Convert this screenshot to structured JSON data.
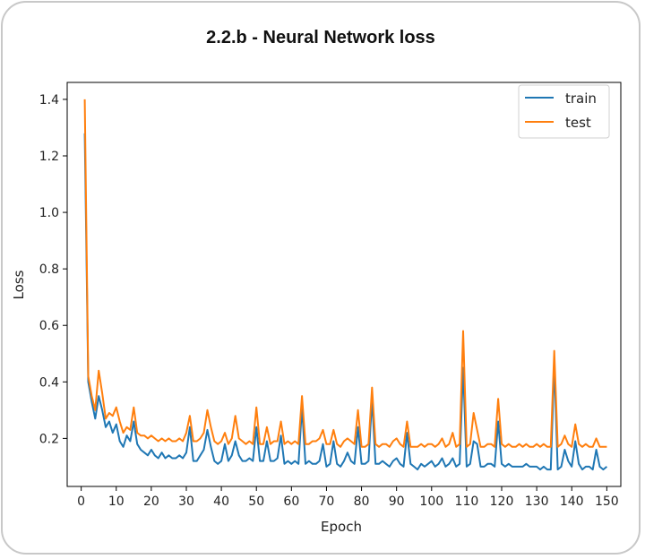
{
  "card": {
    "title": "2.2.b - Neural Network loss"
  },
  "chart_data": {
    "type": "line",
    "title": "",
    "xlabel": "Epoch",
    "ylabel": "Loss",
    "xlim": [
      -4,
      154
    ],
    "ylim": [
      0.03,
      1.46
    ],
    "xticks": [
      0,
      10,
      20,
      30,
      40,
      50,
      60,
      70,
      80,
      90,
      100,
      110,
      120,
      130,
      140,
      150
    ],
    "yticks": [
      0.2,
      0.4,
      0.6,
      0.8,
      1.0,
      1.2,
      1.4
    ],
    "ytick_labels": [
      "0.2",
      "0.4",
      "0.6",
      "0.8",
      "1.0",
      "1.2",
      "1.4"
    ],
    "grid": false,
    "legend_position": "top-right",
    "x": [
      1,
      2,
      3,
      4,
      5,
      6,
      7,
      8,
      9,
      10,
      11,
      12,
      13,
      14,
      15,
      16,
      17,
      18,
      19,
      20,
      21,
      22,
      23,
      24,
      25,
      26,
      27,
      28,
      29,
      30,
      31,
      32,
      33,
      34,
      35,
      36,
      37,
      38,
      39,
      40,
      41,
      42,
      43,
      44,
      45,
      46,
      47,
      48,
      49,
      50,
      51,
      52,
      53,
      54,
      55,
      56,
      57,
      58,
      59,
      60,
      61,
      62,
      63,
      64,
      65,
      66,
      67,
      68,
      69,
      70,
      71,
      72,
      73,
      74,
      75,
      76,
      77,
      78,
      79,
      80,
      81,
      82,
      83,
      84,
      85,
      86,
      87,
      88,
      89,
      90,
      91,
      92,
      93,
      94,
      95,
      96,
      97,
      98,
      99,
      100,
      101,
      102,
      103,
      104,
      105,
      106,
      107,
      108,
      109,
      110,
      111,
      112,
      113,
      114,
      115,
      116,
      117,
      118,
      119,
      120,
      121,
      122,
      123,
      124,
      125,
      126,
      127,
      128,
      129,
      130,
      131,
      132,
      133,
      134,
      135,
      136,
      137,
      138,
      139,
      140,
      141,
      142,
      143,
      144,
      145,
      146,
      147,
      148,
      149,
      150
    ],
    "series": [
      {
        "name": "train",
        "color": "#1f77b4",
        "values": [
          1.28,
          0.4,
          0.33,
          0.27,
          0.35,
          0.3,
          0.24,
          0.26,
          0.22,
          0.25,
          0.19,
          0.17,
          0.21,
          0.19,
          0.26,
          0.18,
          0.16,
          0.15,
          0.14,
          0.16,
          0.14,
          0.13,
          0.15,
          0.13,
          0.14,
          0.13,
          0.13,
          0.14,
          0.13,
          0.15,
          0.24,
          0.12,
          0.12,
          0.14,
          0.16,
          0.23,
          0.17,
          0.12,
          0.11,
          0.12,
          0.18,
          0.12,
          0.14,
          0.19,
          0.14,
          0.12,
          0.12,
          0.13,
          0.12,
          0.24,
          0.12,
          0.12,
          0.19,
          0.12,
          0.12,
          0.13,
          0.21,
          0.11,
          0.12,
          0.11,
          0.12,
          0.11,
          0.31,
          0.11,
          0.12,
          0.11,
          0.11,
          0.12,
          0.18,
          0.1,
          0.11,
          0.19,
          0.11,
          0.1,
          0.12,
          0.15,
          0.12,
          0.11,
          0.24,
          0.11,
          0.11,
          0.12,
          0.34,
          0.11,
          0.11,
          0.12,
          0.11,
          0.1,
          0.12,
          0.13,
          0.11,
          0.1,
          0.22,
          0.11,
          0.1,
          0.09,
          0.11,
          0.1,
          0.11,
          0.12,
          0.1,
          0.11,
          0.13,
          0.1,
          0.11,
          0.13,
          0.1,
          0.11,
          0.45,
          0.1,
          0.11,
          0.19,
          0.18,
          0.1,
          0.1,
          0.11,
          0.11,
          0.1,
          0.26,
          0.11,
          0.1,
          0.11,
          0.1,
          0.1,
          0.1,
          0.1,
          0.11,
          0.1,
          0.1,
          0.1,
          0.09,
          0.1,
          0.09,
          0.09,
          0.46,
          0.09,
          0.1,
          0.16,
          0.12,
          0.1,
          0.19,
          0.11,
          0.09,
          0.1,
          0.1,
          0.09,
          0.16,
          0.1,
          0.09,
          0.1
        ]
      },
      {
        "name": "test",
        "color": "#ff7f0e",
        "values": [
          1.4,
          0.42,
          0.35,
          0.3,
          0.44,
          0.36,
          0.27,
          0.29,
          0.28,
          0.31,
          0.26,
          0.22,
          0.24,
          0.23,
          0.31,
          0.22,
          0.21,
          0.21,
          0.2,
          0.21,
          0.2,
          0.19,
          0.2,
          0.19,
          0.2,
          0.19,
          0.19,
          0.2,
          0.19,
          0.22,
          0.28,
          0.19,
          0.19,
          0.2,
          0.22,
          0.3,
          0.24,
          0.19,
          0.18,
          0.19,
          0.22,
          0.18,
          0.2,
          0.28,
          0.2,
          0.19,
          0.18,
          0.19,
          0.18,
          0.31,
          0.18,
          0.18,
          0.24,
          0.18,
          0.19,
          0.19,
          0.26,
          0.18,
          0.19,
          0.18,
          0.19,
          0.18,
          0.35,
          0.18,
          0.18,
          0.19,
          0.19,
          0.2,
          0.23,
          0.18,
          0.18,
          0.23,
          0.18,
          0.17,
          0.19,
          0.2,
          0.19,
          0.18,
          0.3,
          0.17,
          0.17,
          0.18,
          0.38,
          0.18,
          0.17,
          0.18,
          0.18,
          0.17,
          0.19,
          0.2,
          0.18,
          0.17,
          0.26,
          0.17,
          0.17,
          0.17,
          0.18,
          0.17,
          0.18,
          0.18,
          0.17,
          0.18,
          0.2,
          0.17,
          0.18,
          0.22,
          0.17,
          0.18,
          0.58,
          0.17,
          0.18,
          0.29,
          0.23,
          0.17,
          0.17,
          0.18,
          0.18,
          0.17,
          0.34,
          0.18,
          0.17,
          0.18,
          0.17,
          0.17,
          0.18,
          0.17,
          0.18,
          0.17,
          0.17,
          0.18,
          0.17,
          0.18,
          0.17,
          0.17,
          0.51,
          0.17,
          0.18,
          0.21,
          0.18,
          0.17,
          0.25,
          0.18,
          0.17,
          0.18,
          0.17,
          0.17,
          0.2,
          0.17,
          0.17,
          0.17
        ]
      }
    ]
  }
}
